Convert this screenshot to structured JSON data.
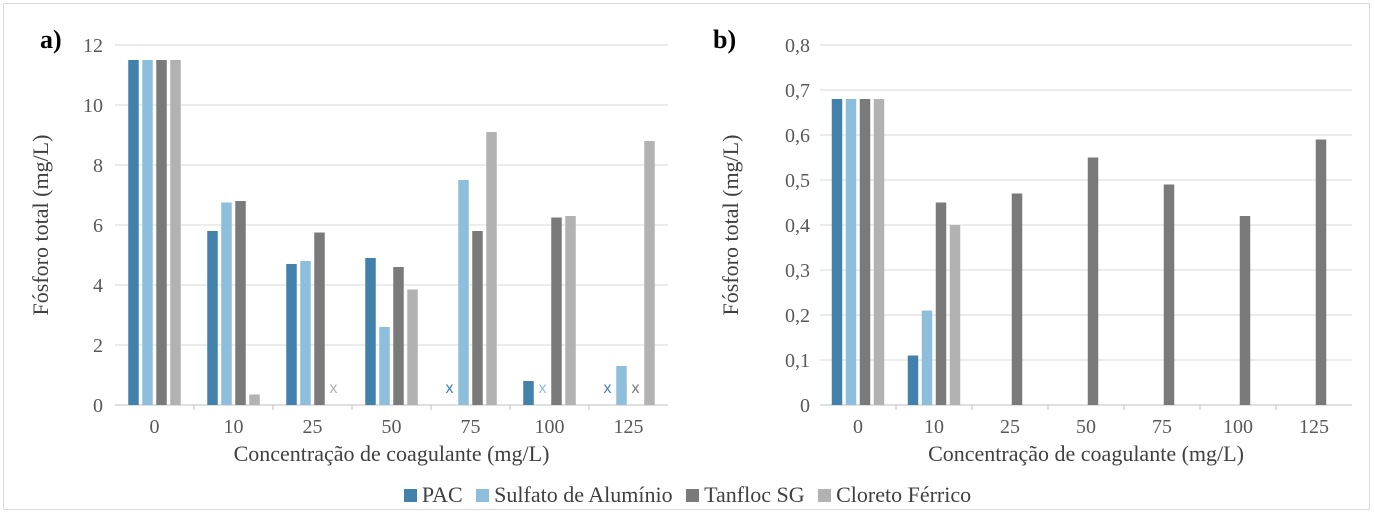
{
  "chart_data": [
    {
      "type": "bar",
      "panel_label": "a)",
      "xlabel": "Concentração de coagulante (mg/L)",
      "ylabel": "Fósforo total (mg/L)",
      "ylim": [
        0,
        12
      ],
      "yticks": [
        "0",
        "2",
        "4",
        "6",
        "8",
        "10",
        "12"
      ],
      "categories": [
        "0",
        "10",
        "25",
        "50",
        "75",
        "100",
        "125"
      ],
      "series": [
        {
          "name": "PAC",
          "values": [
            11.5,
            5.8,
            4.7,
            4.9,
            null,
            0.8,
            null
          ]
        },
        {
          "name": "Sulfato de Alumínio",
          "values": [
            11.5,
            6.75,
            4.8,
            2.6,
            7.5,
            null,
            1.3
          ]
        },
        {
          "name": "Tanfloc SG",
          "values": [
            11.5,
            6.8,
            5.75,
            4.6,
            5.8,
            6.25,
            null
          ]
        },
        {
          "name": "Cloreto Férrico",
          "values": [
            11.5,
            0.35,
            null,
            3.85,
            9.1,
            6.3,
            8.8
          ]
        }
      ],
      "markers": [
        {
          "category": "25",
          "series": "Cloreto Férrico",
          "text": "x"
        },
        {
          "category": "75",
          "series": "PAC",
          "text": "x"
        },
        {
          "category": "100",
          "series": "Sulfato de Alumínio",
          "text": "x"
        },
        {
          "category": "125",
          "series": "PAC",
          "text": "x"
        },
        {
          "category": "125",
          "series": "Tanfloc SG",
          "text": "x"
        }
      ],
      "grid": true
    },
    {
      "type": "bar",
      "panel_label": "b)",
      "xlabel": "Concentração de coagulante (mg/L)",
      "ylabel": "Fósforo total (mg/L)",
      "ylim": [
        0,
        0.8
      ],
      "yticks": [
        "0",
        "0,1",
        "0,2",
        "0,3",
        "0,4",
        "0,5",
        "0,6",
        "0,7",
        "0,8"
      ],
      "categories": [
        "0",
        "10",
        "25",
        "50",
        "75",
        "100",
        "125"
      ],
      "series": [
        {
          "name": "PAC",
          "values": [
            0.68,
            0.11,
            null,
            null,
            null,
            null,
            null
          ]
        },
        {
          "name": "Sulfato de Alumínio",
          "values": [
            0.68,
            0.21,
            null,
            null,
            null,
            null,
            null
          ]
        },
        {
          "name": "Tanfloc SG",
          "values": [
            0.68,
            0.45,
            0.47,
            0.55,
            0.49,
            0.42,
            0.59
          ]
        },
        {
          "name": "Cloreto Férrico",
          "values": [
            0.68,
            0.4,
            null,
            null,
            null,
            null,
            null
          ]
        }
      ],
      "markers": [],
      "grid": true
    }
  ],
  "legend": {
    "placement": "bottom",
    "items": [
      {
        "name": "PAC",
        "color": "#4381ad"
      },
      {
        "name": "Sulfato de Alumínio",
        "color": "#8dbfdc"
      },
      {
        "name": "Tanfloc SG",
        "color": "#7a7a7a"
      },
      {
        "name": "Cloreto Férrico",
        "color": "#b2b2b2"
      }
    ]
  },
  "colors": {
    "PAC": "#4381ad",
    "Sulfato de Alumínio": "#8dbfdc",
    "Tanfloc SG": "#7a7a7a",
    "Cloreto Férrico": "#b2b2b2",
    "grid": "#d9d9d9"
  }
}
